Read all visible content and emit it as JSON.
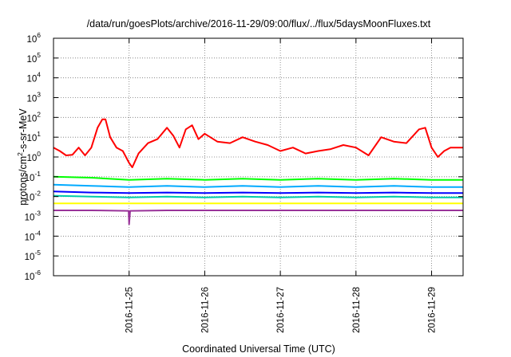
{
  "chart_data": {
    "type": "line",
    "title": "/data/run/goesPlots/archive/2016-11-29/09:00/flux/../flux/5daysMoonFluxes.txt",
    "xlabel": "Coordinated Universal Time (UTC)",
    "ylabel": "protons/cm²-s-sr-MeV",
    "ylabel_parts": {
      "pre": "protons/cm",
      "sup": "2",
      "post": "-s-sr-MeV"
    },
    "y_scale": "log",
    "ylim": [
      1e-06,
      1000000.0
    ],
    "y_ticks": [
      {
        "value": 1e-06,
        "base": "10",
        "exp": "-6"
      },
      {
        "value": 1e-05,
        "base": "10",
        "exp": "-5"
      },
      {
        "value": 0.0001,
        "base": "10",
        "exp": "-4"
      },
      {
        "value": 0.001,
        "base": "10",
        "exp": "-3"
      },
      {
        "value": 0.01,
        "base": "10",
        "exp": "-2"
      },
      {
        "value": 0.1,
        "base": "10",
        "exp": "-1"
      },
      {
        "value": 1,
        "base": "10",
        "exp": "0"
      },
      {
        "value": 10.0,
        "base": "10",
        "exp": "1"
      },
      {
        "value": 100.0,
        "base": "10",
        "exp": "2"
      },
      {
        "value": 1000.0,
        "base": "10",
        "exp": "3"
      },
      {
        "value": 10000.0,
        "base": "10",
        "exp": "4"
      },
      {
        "value": 100000.0,
        "base": "10",
        "exp": "5"
      },
      {
        "value": 1000000.0,
        "base": "10",
        "exp": "6"
      }
    ],
    "xlim": [
      "2016-11-24T00:00Z",
      "2016-11-29T10:00Z"
    ],
    "x_ticks": [
      "2016-11-25",
      "2016-11-26",
      "2016-11-27",
      "2016-11-28",
      "2016-11-29"
    ],
    "grid": true,
    "legend": "none",
    "series": [
      {
        "color": "#ff0000",
        "points": [
          [
            "2016-11-24T00:00Z",
            3
          ],
          [
            "2016-11-24T02:00Z",
            2
          ],
          [
            "2016-11-24T04:00Z",
            1.2
          ],
          [
            "2016-11-24T06:00Z",
            1.3
          ],
          [
            "2016-11-24T08:00Z",
            3
          ],
          [
            "2016-11-24T10:00Z",
            1.2
          ],
          [
            "2016-11-24T12:00Z",
            3
          ],
          [
            "2016-11-24T14:00Z",
            30
          ],
          [
            "2016-11-24T15:30Z",
            80
          ],
          [
            "2016-11-24T16:30Z",
            80
          ],
          [
            "2016-11-24T18:00Z",
            10
          ],
          [
            "2016-11-24T20:00Z",
            3
          ],
          [
            "2016-11-24T22:00Z",
            2
          ],
          [
            "2016-11-25T00:00Z",
            0.5
          ],
          [
            "2016-11-25T01:00Z",
            0.3
          ],
          [
            "2016-11-25T03:00Z",
            1.5
          ],
          [
            "2016-11-25T06:00Z",
            5
          ],
          [
            "2016-11-25T09:00Z",
            8
          ],
          [
            "2016-11-25T12:00Z",
            30
          ],
          [
            "2016-11-25T14:00Z",
            12
          ],
          [
            "2016-11-25T16:00Z",
            3
          ],
          [
            "2016-11-25T18:00Z",
            25
          ],
          [
            "2016-11-25T20:00Z",
            40
          ],
          [
            "2016-11-25T22:00Z",
            8
          ],
          [
            "2016-11-26T00:00Z",
            15
          ],
          [
            "2016-11-26T04:00Z",
            6
          ],
          [
            "2016-11-26T08:00Z",
            5
          ],
          [
            "2016-11-26T12:00Z",
            10
          ],
          [
            "2016-11-26T16:00Z",
            6
          ],
          [
            "2016-11-26T20:00Z",
            4
          ],
          [
            "2016-11-27T00:00Z",
            2
          ],
          [
            "2016-11-27T04:00Z",
            3
          ],
          [
            "2016-11-27T08:00Z",
            1.5
          ],
          [
            "2016-11-27T12:00Z",
            2
          ],
          [
            "2016-11-27T16:00Z",
            2.5
          ],
          [
            "2016-11-27T20:00Z",
            4
          ],
          [
            "2016-11-28T00:00Z",
            3
          ],
          [
            "2016-11-28T04:00Z",
            1.2
          ],
          [
            "2016-11-28T08:00Z",
            10
          ],
          [
            "2016-11-28T12:00Z",
            6
          ],
          [
            "2016-11-28T16:00Z",
            5
          ],
          [
            "2016-11-28T20:00Z",
            25
          ],
          [
            "2016-11-28T22:00Z",
            30
          ],
          [
            "2016-11-29T00:00Z",
            3
          ],
          [
            "2016-11-29T02:00Z",
            1
          ],
          [
            "2016-11-29T04:00Z",
            2
          ],
          [
            "2016-11-29T06:00Z",
            3
          ],
          [
            "2016-11-29T10:00Z",
            3
          ]
        ]
      },
      {
        "color": "#00ff00",
        "points": [
          [
            "2016-11-24T00:00Z",
            0.1
          ],
          [
            "2016-11-24T12:00Z",
            0.09
          ],
          [
            "2016-11-25T00:00Z",
            0.07
          ],
          [
            "2016-11-25T12:00Z",
            0.08
          ],
          [
            "2016-11-26T00:00Z",
            0.07
          ],
          [
            "2016-11-26T12:00Z",
            0.08
          ],
          [
            "2016-11-27T00:00Z",
            0.07
          ],
          [
            "2016-11-27T12:00Z",
            0.08
          ],
          [
            "2016-11-28T00:00Z",
            0.07
          ],
          [
            "2016-11-28T12:00Z",
            0.08
          ],
          [
            "2016-11-29T00:00Z",
            0.07
          ],
          [
            "2016-11-29T10:00Z",
            0.07
          ]
        ]
      },
      {
        "color": "#00aaff",
        "points": [
          [
            "2016-11-24T00:00Z",
            0.04
          ],
          [
            "2016-11-24T12:00Z",
            0.035
          ],
          [
            "2016-11-25T00:00Z",
            0.03
          ],
          [
            "2016-11-25T12:00Z",
            0.035
          ],
          [
            "2016-11-26T00:00Z",
            0.03
          ],
          [
            "2016-11-26T12:00Z",
            0.035
          ],
          [
            "2016-11-27T00:00Z",
            0.03
          ],
          [
            "2016-11-27T12:00Z",
            0.035
          ],
          [
            "2016-11-28T00:00Z",
            0.03
          ],
          [
            "2016-11-28T12:00Z",
            0.035
          ],
          [
            "2016-11-29T00:00Z",
            0.03
          ],
          [
            "2016-11-29T10:00Z",
            0.03
          ]
        ]
      },
      {
        "color": "#0000ff",
        "points": [
          [
            "2016-11-24T00:00Z",
            0.018
          ],
          [
            "2016-11-24T12:00Z",
            0.016
          ],
          [
            "2016-11-25T00:00Z",
            0.015
          ],
          [
            "2016-11-25T12:00Z",
            0.016
          ],
          [
            "2016-11-26T00:00Z",
            0.015
          ],
          [
            "2016-11-26T12:00Z",
            0.016
          ],
          [
            "2016-11-27T00:00Z",
            0.015
          ],
          [
            "2016-11-27T12:00Z",
            0.016
          ],
          [
            "2016-11-28T00:00Z",
            0.015
          ],
          [
            "2016-11-28T12:00Z",
            0.016
          ],
          [
            "2016-11-29T00:00Z",
            0.015
          ],
          [
            "2016-11-29T10:00Z",
            0.015
          ]
        ]
      },
      {
        "color": "#00ccaa",
        "points": [
          [
            "2016-11-24T00:00Z",
            0.011
          ],
          [
            "2016-11-24T12:00Z",
            0.01
          ],
          [
            "2016-11-25T00:00Z",
            0.009
          ],
          [
            "2016-11-25T12:00Z",
            0.01
          ],
          [
            "2016-11-26T00:00Z",
            0.009
          ],
          [
            "2016-11-26T12:00Z",
            0.01
          ],
          [
            "2016-11-27T00:00Z",
            0.009
          ],
          [
            "2016-11-27T12:00Z",
            0.01
          ],
          [
            "2016-11-28T00:00Z",
            0.009
          ],
          [
            "2016-11-28T12:00Z",
            0.01
          ],
          [
            "2016-11-29T00:00Z",
            0.009
          ],
          [
            "2016-11-29T10:00Z",
            0.009
          ]
        ]
      },
      {
        "color": "#ffff00",
        "points": [
          [
            "2016-11-24T00:00Z",
            0.0045
          ],
          [
            "2016-11-25T00:00Z",
            0.0045
          ],
          [
            "2016-11-26T00:00Z",
            0.0045
          ],
          [
            "2016-11-27T00:00Z",
            0.0045
          ],
          [
            "2016-11-28T00:00Z",
            0.0045
          ],
          [
            "2016-11-29T00:00Z",
            0.0045
          ],
          [
            "2016-11-29T10:00Z",
            0.0045
          ]
        ]
      },
      {
        "color": "#993399",
        "points": [
          [
            "2016-11-24T00:00Z",
            0.002
          ],
          [
            "2016-11-24T12:00Z",
            0.002
          ],
          [
            "2016-11-24T23:50Z",
            0.0019
          ],
          [
            "2016-11-25T00:00Z",
            0.0004
          ],
          [
            "2016-11-25T00:20Z",
            0.0019
          ],
          [
            "2016-11-25T12:00Z",
            0.002
          ],
          [
            "2016-11-26T00:00Z",
            0.002
          ],
          [
            "2016-11-26T12:00Z",
            0.002
          ],
          [
            "2016-11-27T00:00Z",
            0.002
          ],
          [
            "2016-11-27T12:00Z",
            0.002
          ],
          [
            "2016-11-28T00:00Z",
            0.002
          ],
          [
            "2016-11-28T12:00Z",
            0.002
          ],
          [
            "2016-11-29T00:00Z",
            0.002
          ],
          [
            "2016-11-29T10:00Z",
            0.002
          ]
        ]
      }
    ]
  }
}
